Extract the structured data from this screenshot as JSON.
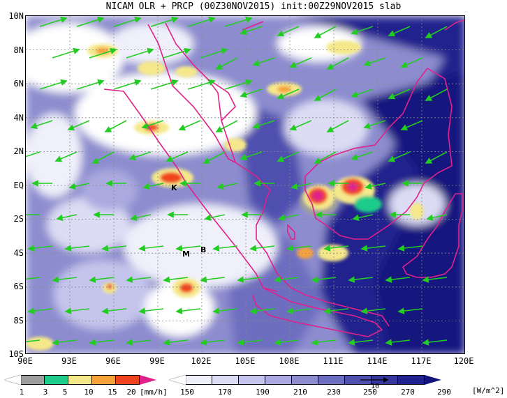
{
  "header": {
    "title": "NICAM OLR + PRCP (00Z30NOV2015) init:00Z29NOV2015 slab"
  },
  "map": {
    "lat_labels": [
      "10N",
      "8N",
      "6N",
      "4N",
      "2N",
      "EQ",
      "2S",
      "4S",
      "6S",
      "8S",
      "10S"
    ],
    "lon_labels": [
      "90E",
      "93E",
      "96E",
      "99E",
      "102E",
      "105E",
      "108E",
      "111E",
      "114E",
      "117E",
      "120E"
    ],
    "lon_range": [
      90,
      120
    ],
    "lat_range": [
      -10,
      10
    ],
    "markers": [
      {
        "label": "K",
        "lon": 100.3,
        "lat": -0.2
      },
      {
        "label": "M",
        "lon": 100.6,
        "lat": -4.1
      },
      {
        "label": "B",
        "lon": 102.3,
        "lat": -3.8
      }
    ],
    "coastline_color": "#e0218a",
    "wind_vector_color": "#22cc22",
    "grid": true
  },
  "precip_colorbar": {
    "labels": [
      "1",
      "3",
      "5",
      "10",
      "15",
      "20"
    ],
    "unit": "[mm/h]",
    "colors": [
      "#ffffff",
      "#9e9e9e",
      "#1fcc8a",
      "#f5e88a",
      "#f7a23a",
      "#f0441e",
      "#e0218a"
    ]
  },
  "olr_colorbar": {
    "labels": [
      "150",
      "170",
      "190",
      "210",
      "230",
      "250",
      "270",
      "290"
    ],
    "unit": "[W/m^2]",
    "vector_ref_label": "10",
    "colors": [
      "#ffffff",
      "#f0f0fb",
      "#dcdcf4",
      "#c4c4ec",
      "#aaaae0",
      "#8c8ccf",
      "#6e6ec0",
      "#4f4faf",
      "#36369e",
      "#20208e",
      "#14147f"
    ]
  }
}
